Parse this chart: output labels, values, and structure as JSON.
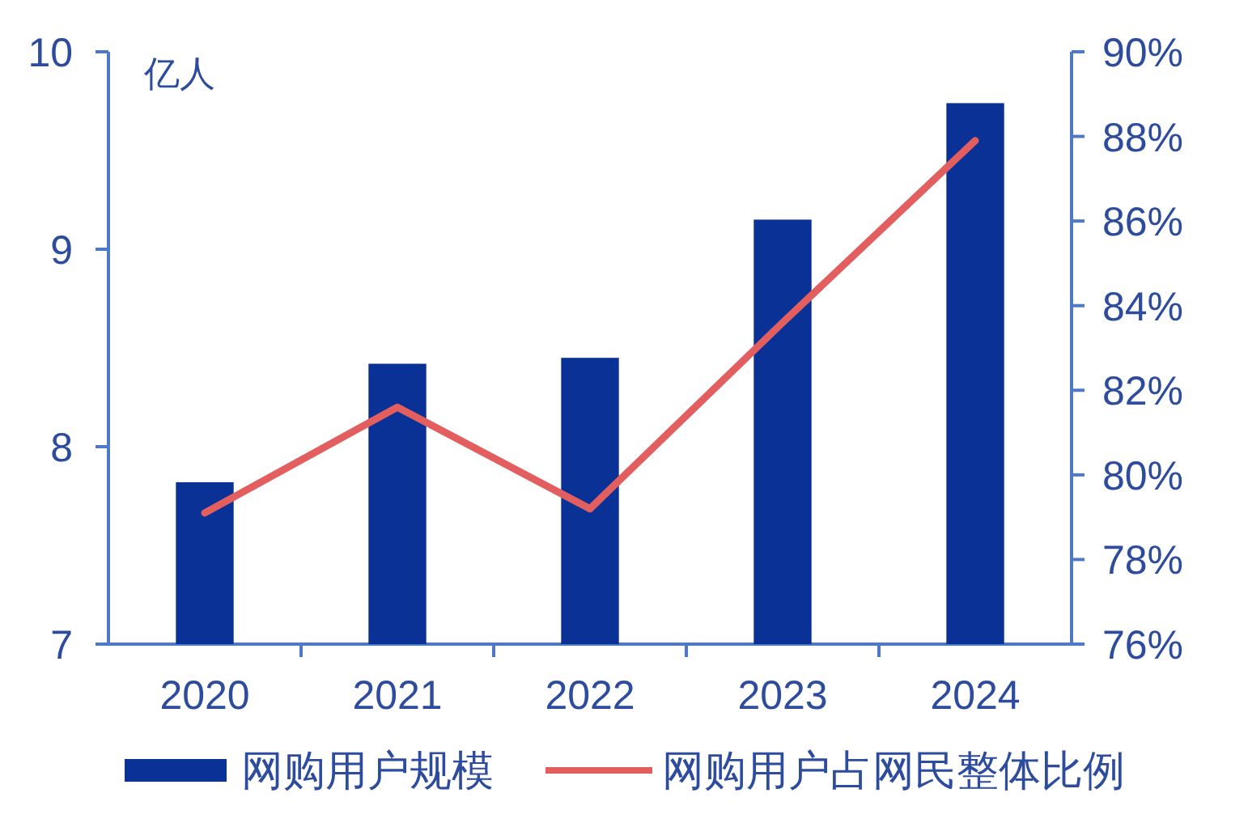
{
  "chart_data": {
    "type": "bar",
    "ylabel": "亿人",
    "categories": [
      "2020",
      "2021",
      "2022",
      "2023",
      "2024"
    ],
    "series": [
      {
        "name": "网购用户规模",
        "color": "#0a3296",
        "values": [
          7.82,
          8.42,
          8.45,
          9.15,
          9.74
        ]
      },
      {
        "name": "网购用户占网民整体比例",
        "type": "line",
        "color": "#e35f5f",
        "axis": "y2",
        "values": [
          79.1,
          81.6,
          79.2,
          83.6,
          87.9
        ]
      }
    ],
    "ylim": [
      7,
      10
    ],
    "yticks": [
      7,
      8,
      9,
      10
    ],
    "y2lim": [
      76,
      90
    ],
    "y2ticks": [
      {
        "value": 76,
        "label": "76%"
      },
      {
        "value": 78,
        "label": "78%"
      },
      {
        "value": 80,
        "label": "80%"
      },
      {
        "value": 82,
        "label": "82%"
      },
      {
        "value": 84,
        "label": "84%"
      },
      {
        "value": 86,
        "label": "86%"
      },
      {
        "value": 88,
        "label": "88%"
      },
      {
        "value": 90,
        "label": "90%"
      }
    ],
    "legend": "bottom",
    "grid": false,
    "marker": "none",
    "line_style": "solid"
  }
}
